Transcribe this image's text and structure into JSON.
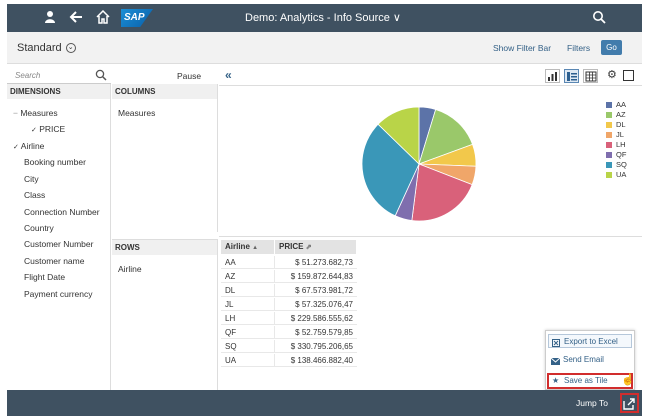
{
  "shell": {
    "title": "Demo: Analytics - Info Source",
    "title_chevron": "∨",
    "logo": "SAP",
    "icons": [
      "user-icon",
      "back-arrow-icon",
      "home-icon",
      "search-icon"
    ]
  },
  "subheader": {
    "variant": "Standard",
    "variant_icon": "⌄",
    "show_filter_bar": "Show Filter Bar",
    "filters": "Filters",
    "go": "Go"
  },
  "left": {
    "search_placeholder": "Search",
    "pause": "Pause",
    "dimensions_header": "DIMENSIONS",
    "dimensions": [
      {
        "label": "Measures",
        "prefix": "−"
      },
      {
        "label": "PRICE",
        "prefix": "✓"
      },
      {
        "label": "Airline",
        "prefix": "✓"
      },
      {
        "label": "Booking number",
        "prefix": ""
      },
      {
        "label": "City",
        "prefix": ""
      },
      {
        "label": "Class",
        "prefix": ""
      },
      {
        "label": "Connection Number",
        "prefix": ""
      },
      {
        "label": "Country",
        "prefix": ""
      },
      {
        "label": "Customer Number",
        "prefix": ""
      },
      {
        "label": "Customer name",
        "prefix": ""
      },
      {
        "label": "Flight Date",
        "prefix": ""
      },
      {
        "label": "Payment currency",
        "prefix": ""
      }
    ],
    "columns_header": "COLUMNS",
    "columns": [
      "Measures"
    ],
    "rows_header": "ROWS",
    "rows": [
      "Airline"
    ]
  },
  "toolbar": {
    "collapse": "«",
    "view_buttons": [
      "bar-chart-icon",
      "table-chart-icon",
      "grid-icon"
    ],
    "settings_icon": "gear-icon",
    "fullscreen_icon": "fullscreen-icon"
  },
  "chart_data": {
    "type": "pie",
    "categories": [
      "AA",
      "AZ",
      "DL",
      "JL",
      "LH",
      "QF",
      "SQ",
      "UA"
    ],
    "values": [
      51273682.73,
      159872644.83,
      67573981.72,
      57325076.47,
      229586555.62,
      52759579.85,
      330795206.65,
      138466882.4
    ],
    "colors": [
      "#5c73a8",
      "#9ac86a",
      "#f2c84b",
      "#f0a669",
      "#d9617a",
      "#7f6eae",
      "#3a97b8",
      "#b9d448"
    ],
    "legend_position": "right"
  },
  "table": {
    "headers": [
      "Airline",
      "PRICE"
    ],
    "header_sort_icon": "▲",
    "header_filter_icon": "⇗",
    "rows": [
      [
        "AA",
        "$ 51.273.682,73"
      ],
      [
        "AZ",
        "$ 159.872.644,83"
      ],
      [
        "DL",
        "$ 67.573.981,72"
      ],
      [
        "JL",
        "$ 57.325.076,47"
      ],
      [
        "LH",
        "$ 229.586.555,62"
      ],
      [
        "QF",
        "$ 52.759.579,85"
      ],
      [
        "SQ",
        "$ 330.795.206,65"
      ],
      [
        "UA",
        "$ 138.466.882,40"
      ]
    ]
  },
  "share_menu": {
    "export": "Export to Excel",
    "email": "Send Email",
    "save_tile": "Save as Tile"
  },
  "footer": {
    "jump_to": "Jump To"
  }
}
